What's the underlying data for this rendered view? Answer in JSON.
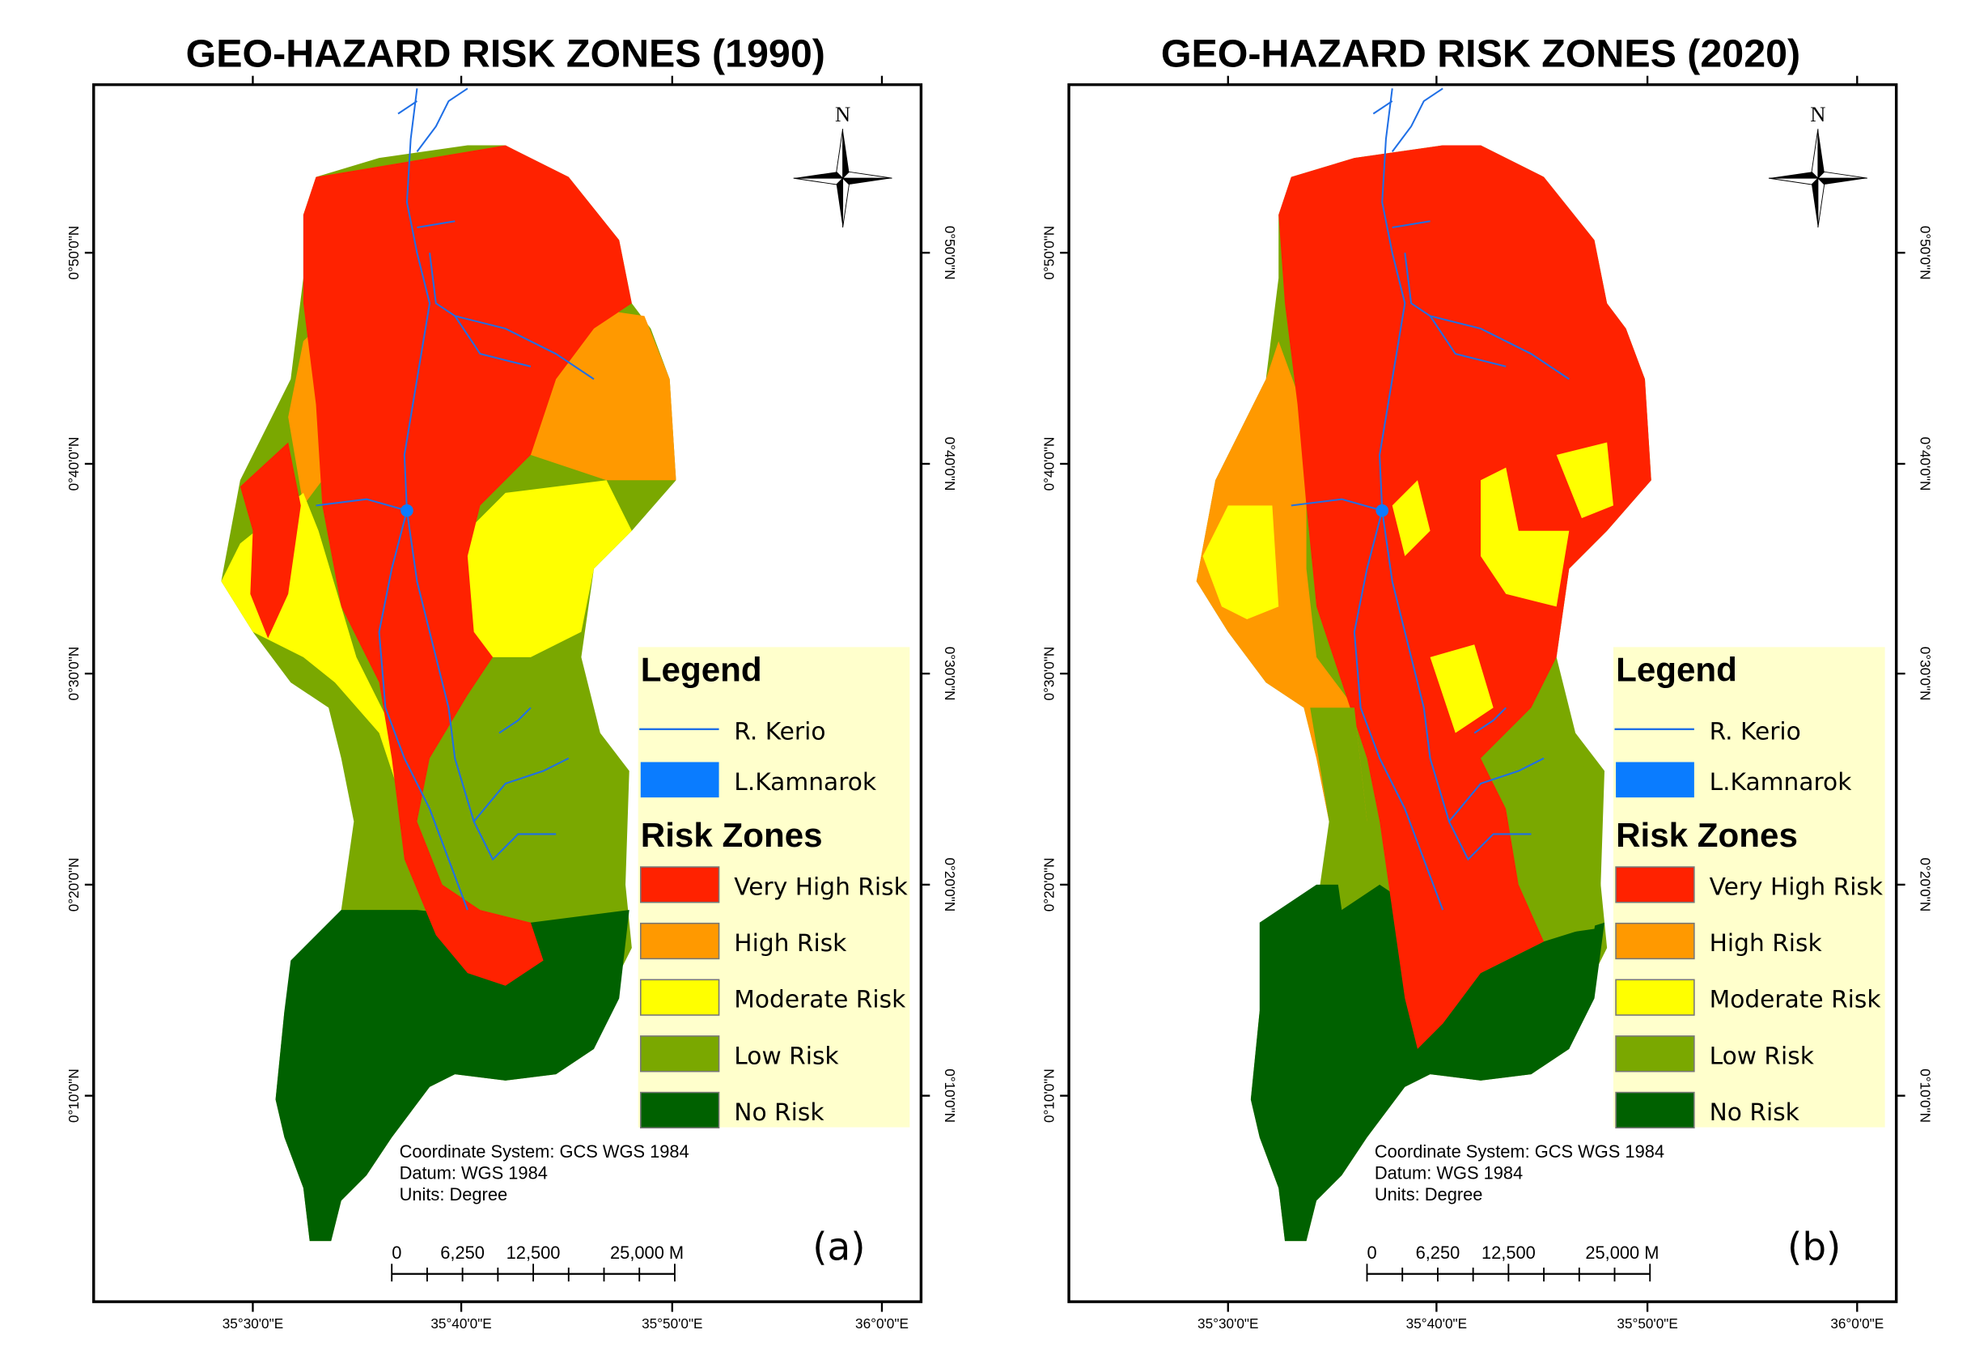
{
  "colors": {
    "very_high": "#ff2200",
    "high": "#ff9900",
    "moderate": "#ffff00",
    "low": "#7aa800",
    "none": "#006100",
    "river": "#1f6fe6",
    "lake": "#0a7cff",
    "legend_bg": "#ffffcc"
  },
  "panels": [
    {
      "title": "GEO-HAZARD RISK ZONES (1990)",
      "label": "(a)",
      "year": 1990
    },
    {
      "title": "GEO-HAZARD RISK ZONES (2020)",
      "label": "(b)",
      "year": 2020
    }
  ],
  "legend": {
    "title": "Legend",
    "river": "R. Kerio",
    "lake": "L.Kamnarok",
    "zones_title": "Risk Zones",
    "zones": [
      "Very High Risk",
      "High Risk",
      "Moderate Risk",
      "Low Risk",
      "No Risk"
    ]
  },
  "map_info": {
    "coordinate_system": "Coordinate System: GCS WGS 1984",
    "datum": "Datum: WGS 1984",
    "units": "Units: Degree"
  },
  "scale_bar": {
    "labels": [
      "0",
      "6,250",
      "12,500",
      "25,000 M"
    ]
  },
  "north_arrow": {
    "label": "N",
    "icon": "north-arrow-icon"
  },
  "axes": {
    "longitude": [
      "35°30'0\"E",
      "35°40'0\"E",
      "35°50'0\"E",
      "36°0'0\"E"
    ],
    "latitude": [
      "0°50'0\"N",
      "0°40'0\"N",
      "0°30'0\"N",
      "0°20'0\"N",
      "0°10'0\"N"
    ]
  }
}
